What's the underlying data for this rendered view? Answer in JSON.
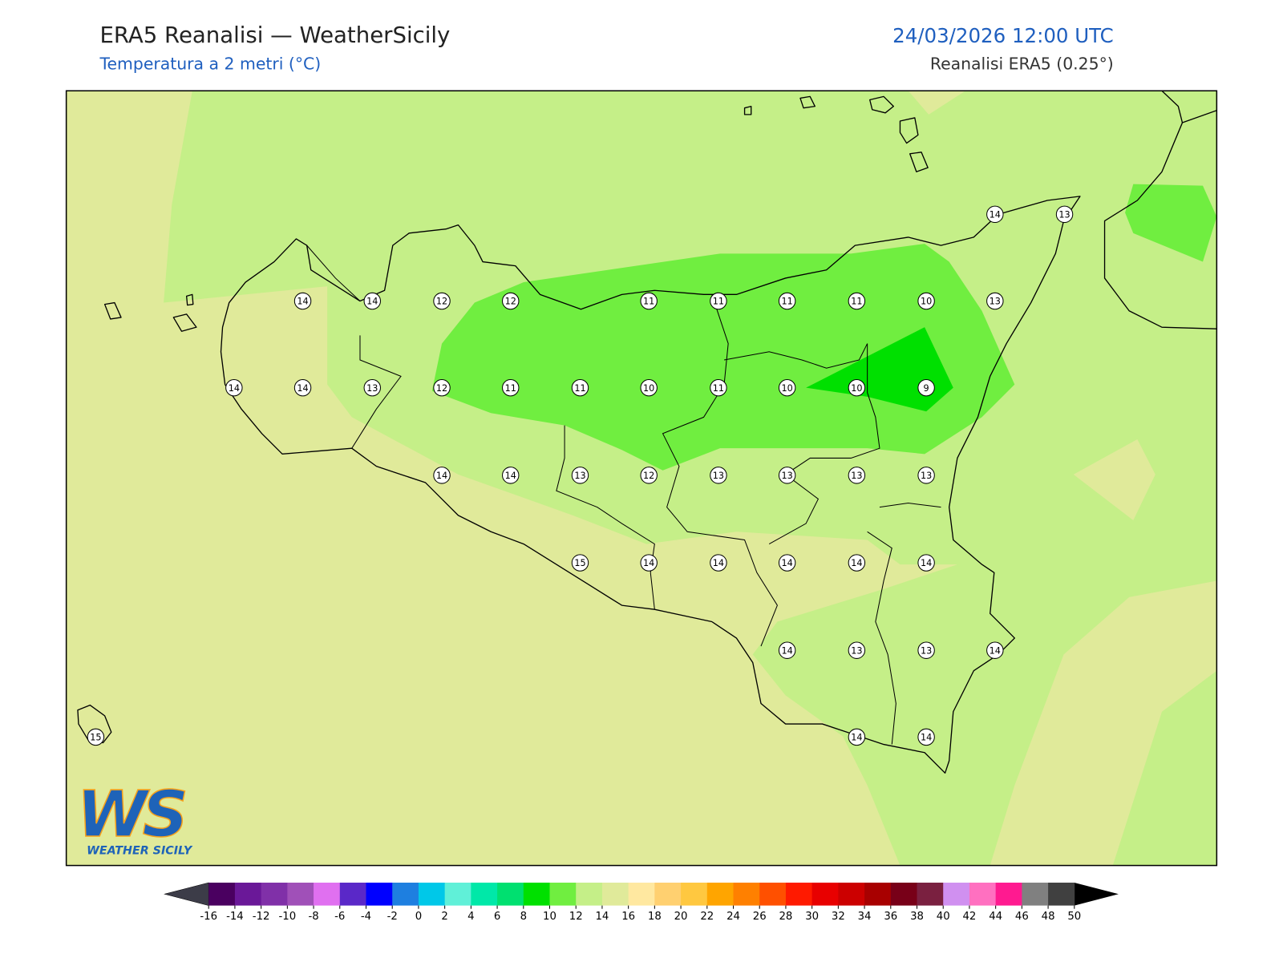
{
  "header": {
    "title": "ERA5 Reanalisi — WeatherSicily",
    "subtitle": "Temperatura a 2 metri (°C)",
    "date": "24/03/2026 12:00 UTC",
    "source": "Reanalisi ERA5 (0.25°)"
  },
  "map": {
    "points": [
      14,
      14,
      12,
      12,
      11,
      11,
      11,
      11,
      10,
      13,
      14,
      13,
      14,
      14,
      13,
      12,
      11,
      11,
      10,
      11,
      10,
      10,
      9,
      14,
      14,
      13,
      12,
      13,
      13,
      13,
      13,
      15,
      14,
      14,
      14,
      14,
      14,
      14,
      13,
      13,
      14,
      15,
      14,
      14
    ]
  },
  "colorbar": {
    "ticks": [
      -16,
      -14,
      -12,
      -10,
      -8,
      -6,
      -4,
      -2,
      0,
      2,
      4,
      6,
      8,
      10,
      12,
      14,
      16,
      18,
      20,
      22,
      24,
      26,
      28,
      30,
      32,
      34,
      36,
      38,
      40,
      42,
      44,
      46,
      48,
      50
    ],
    "colors": [
      "#4a0060",
      "#6a1898",
      "#8030a8",
      "#a050b8",
      "#e070f0",
      "#5a28c8",
      "#0000ff",
      "#1e7fe0",
      "#00c8e8",
      "#60f0d8",
      "#00e8a8",
      "#00e070",
      "#00e000",
      "#70ee40",
      "#c5ef88",
      "#e0ea9a",
      "#ffe8a0",
      "#ffd070",
      "#ffc840",
      "#ffa500",
      "#ff8000",
      "#ff5000",
      "#ff1a00",
      "#e80000",
      "#cc0000",
      "#a80000",
      "#780018",
      "#7a2040",
      "#d090f0",
      "#ff70c0",
      "#ff1a90",
      "#808080",
      "#404040"
    ],
    "under_color": "#3c3c48",
    "over_color": "#000000"
  },
  "logo": {
    "mark": "WS",
    "name": "WEATHER SICILY"
  }
}
